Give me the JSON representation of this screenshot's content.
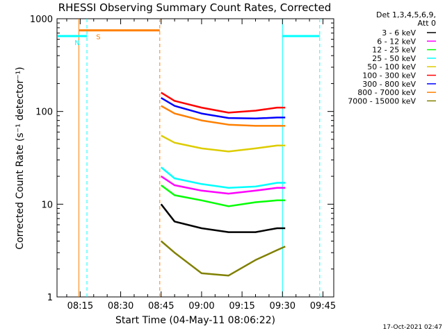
{
  "chart_data": {
    "type": "line",
    "title": "RHESSI Observing Summary Count Rates, Corrected",
    "xlabel": "Start Time (04-May-11 08:06:22)",
    "ylabel": "Corrected Count Rate (s⁻¹ detector⁻¹)",
    "yscale": "log",
    "ylim": [
      1,
      1000
    ],
    "xlim_minutes": [
      486.4,
      589.0
    ],
    "xticks": [
      {
        "label": "08:15",
        "minutes": 495
      },
      {
        "label": "08:30",
        "minutes": 510
      },
      {
        "label": "08:45",
        "minutes": 525
      },
      {
        "label": "09:00",
        "minutes": 540
      },
      {
        "label": "09:15",
        "minutes": 555
      },
      {
        "label": "09:30",
        "minutes": 570
      },
      {
        "label": "09:45",
        "minutes": 585
      }
    ],
    "yticks": [
      {
        "label": "1",
        "value": 1
      },
      {
        "label": "10",
        "value": 10
      },
      {
        "label": "100",
        "value": 100
      },
      {
        "label": "1000",
        "value": 1000
      }
    ],
    "legend": {
      "placement": "top-right",
      "header": [
        "Det 1,3,4,5,6,9,",
        "Att 0"
      ]
    },
    "series": [
      {
        "name": "3 - 6 keV",
        "color": "#000000",
        "points": [
          [
            525,
            10
          ],
          [
            530,
            6.5
          ],
          [
            540,
            5.5
          ],
          [
            550,
            5
          ],
          [
            560,
            5
          ],
          [
            568,
            5.5
          ],
          [
            571,
            5.5
          ]
        ]
      },
      {
        "name": "6 - 12 keV",
        "color": "#ff00ff",
        "points": [
          [
            525,
            20
          ],
          [
            530,
            16
          ],
          [
            540,
            14
          ],
          [
            550,
            13
          ],
          [
            560,
            14
          ],
          [
            568,
            15
          ],
          [
            571,
            15
          ]
        ]
      },
      {
        "name": "12 - 25 keV",
        "color": "#00ff00",
        "points": [
          [
            525,
            16
          ],
          [
            530,
            12.5
          ],
          [
            540,
            11
          ],
          [
            550,
            9.5
          ],
          [
            560,
            10.5
          ],
          [
            568,
            11
          ],
          [
            571,
            11
          ]
        ]
      },
      {
        "name": "25 - 50 keV",
        "color": "#00ffff",
        "points": [
          [
            525,
            25
          ],
          [
            530,
            19
          ],
          [
            540,
            16.5
          ],
          [
            550,
            15
          ],
          [
            560,
            15.5
          ],
          [
            568,
            17
          ],
          [
            571,
            17
          ]
        ]
      },
      {
        "name": "50 - 100 keV",
        "color": "#ddcc00",
        "points": [
          [
            525,
            55
          ],
          [
            530,
            46
          ],
          [
            540,
            40
          ],
          [
            550,
            37
          ],
          [
            560,
            40
          ],
          [
            568,
            43
          ],
          [
            571,
            43
          ]
        ]
      },
      {
        "name": "100 - 300 keV",
        "color": "#ff0000",
        "points": [
          [
            525,
            160
          ],
          [
            530,
            130
          ],
          [
            540,
            110
          ],
          [
            550,
            97
          ],
          [
            560,
            102
          ],
          [
            568,
            110
          ],
          [
            571,
            110
          ]
        ]
      },
      {
        "name": "300 - 800 keV",
        "color": "#0000ff",
        "points": [
          [
            525,
            140
          ],
          [
            530,
            115
          ],
          [
            540,
            95
          ],
          [
            550,
            85
          ],
          [
            560,
            84
          ],
          [
            568,
            86
          ],
          [
            571,
            86
          ]
        ]
      },
      {
        "name": "800 - 7000 keV",
        "color": "#ff7f00",
        "points": [
          [
            525,
            115
          ],
          [
            530,
            95
          ],
          [
            540,
            80
          ],
          [
            550,
            72
          ],
          [
            560,
            70
          ],
          [
            568,
            70
          ],
          [
            571,
            70
          ]
        ]
      },
      {
        "name": "7000 - 15000 keV",
        "color": "#808000",
        "points": [
          [
            525,
            4
          ],
          [
            530,
            3
          ],
          [
            540,
            1.8
          ],
          [
            550,
            1.7
          ],
          [
            560,
            2.5
          ],
          [
            568,
            3.2
          ],
          [
            571,
            3.5
          ]
        ]
      }
    ],
    "flags": [
      {
        "label": "S",
        "color": "#ff7f00",
        "from_minutes": 494.5,
        "to_minutes": 524.5,
        "level": 750,
        "bound_style": "dashed"
      },
      {
        "label": "N",
        "color": "#00ffff",
        "from_minutes": 486.4,
        "to_minutes": 497.5,
        "level": 650,
        "bound_style": "dashed"
      },
      {
        "label": "",
        "color": "#00ffff",
        "from_minutes": 570.0,
        "to_minutes": 583.8,
        "level": 650,
        "bound_style": "dashed"
      }
    ],
    "footer_timestamp": "17-Oct-2021 02:47"
  }
}
